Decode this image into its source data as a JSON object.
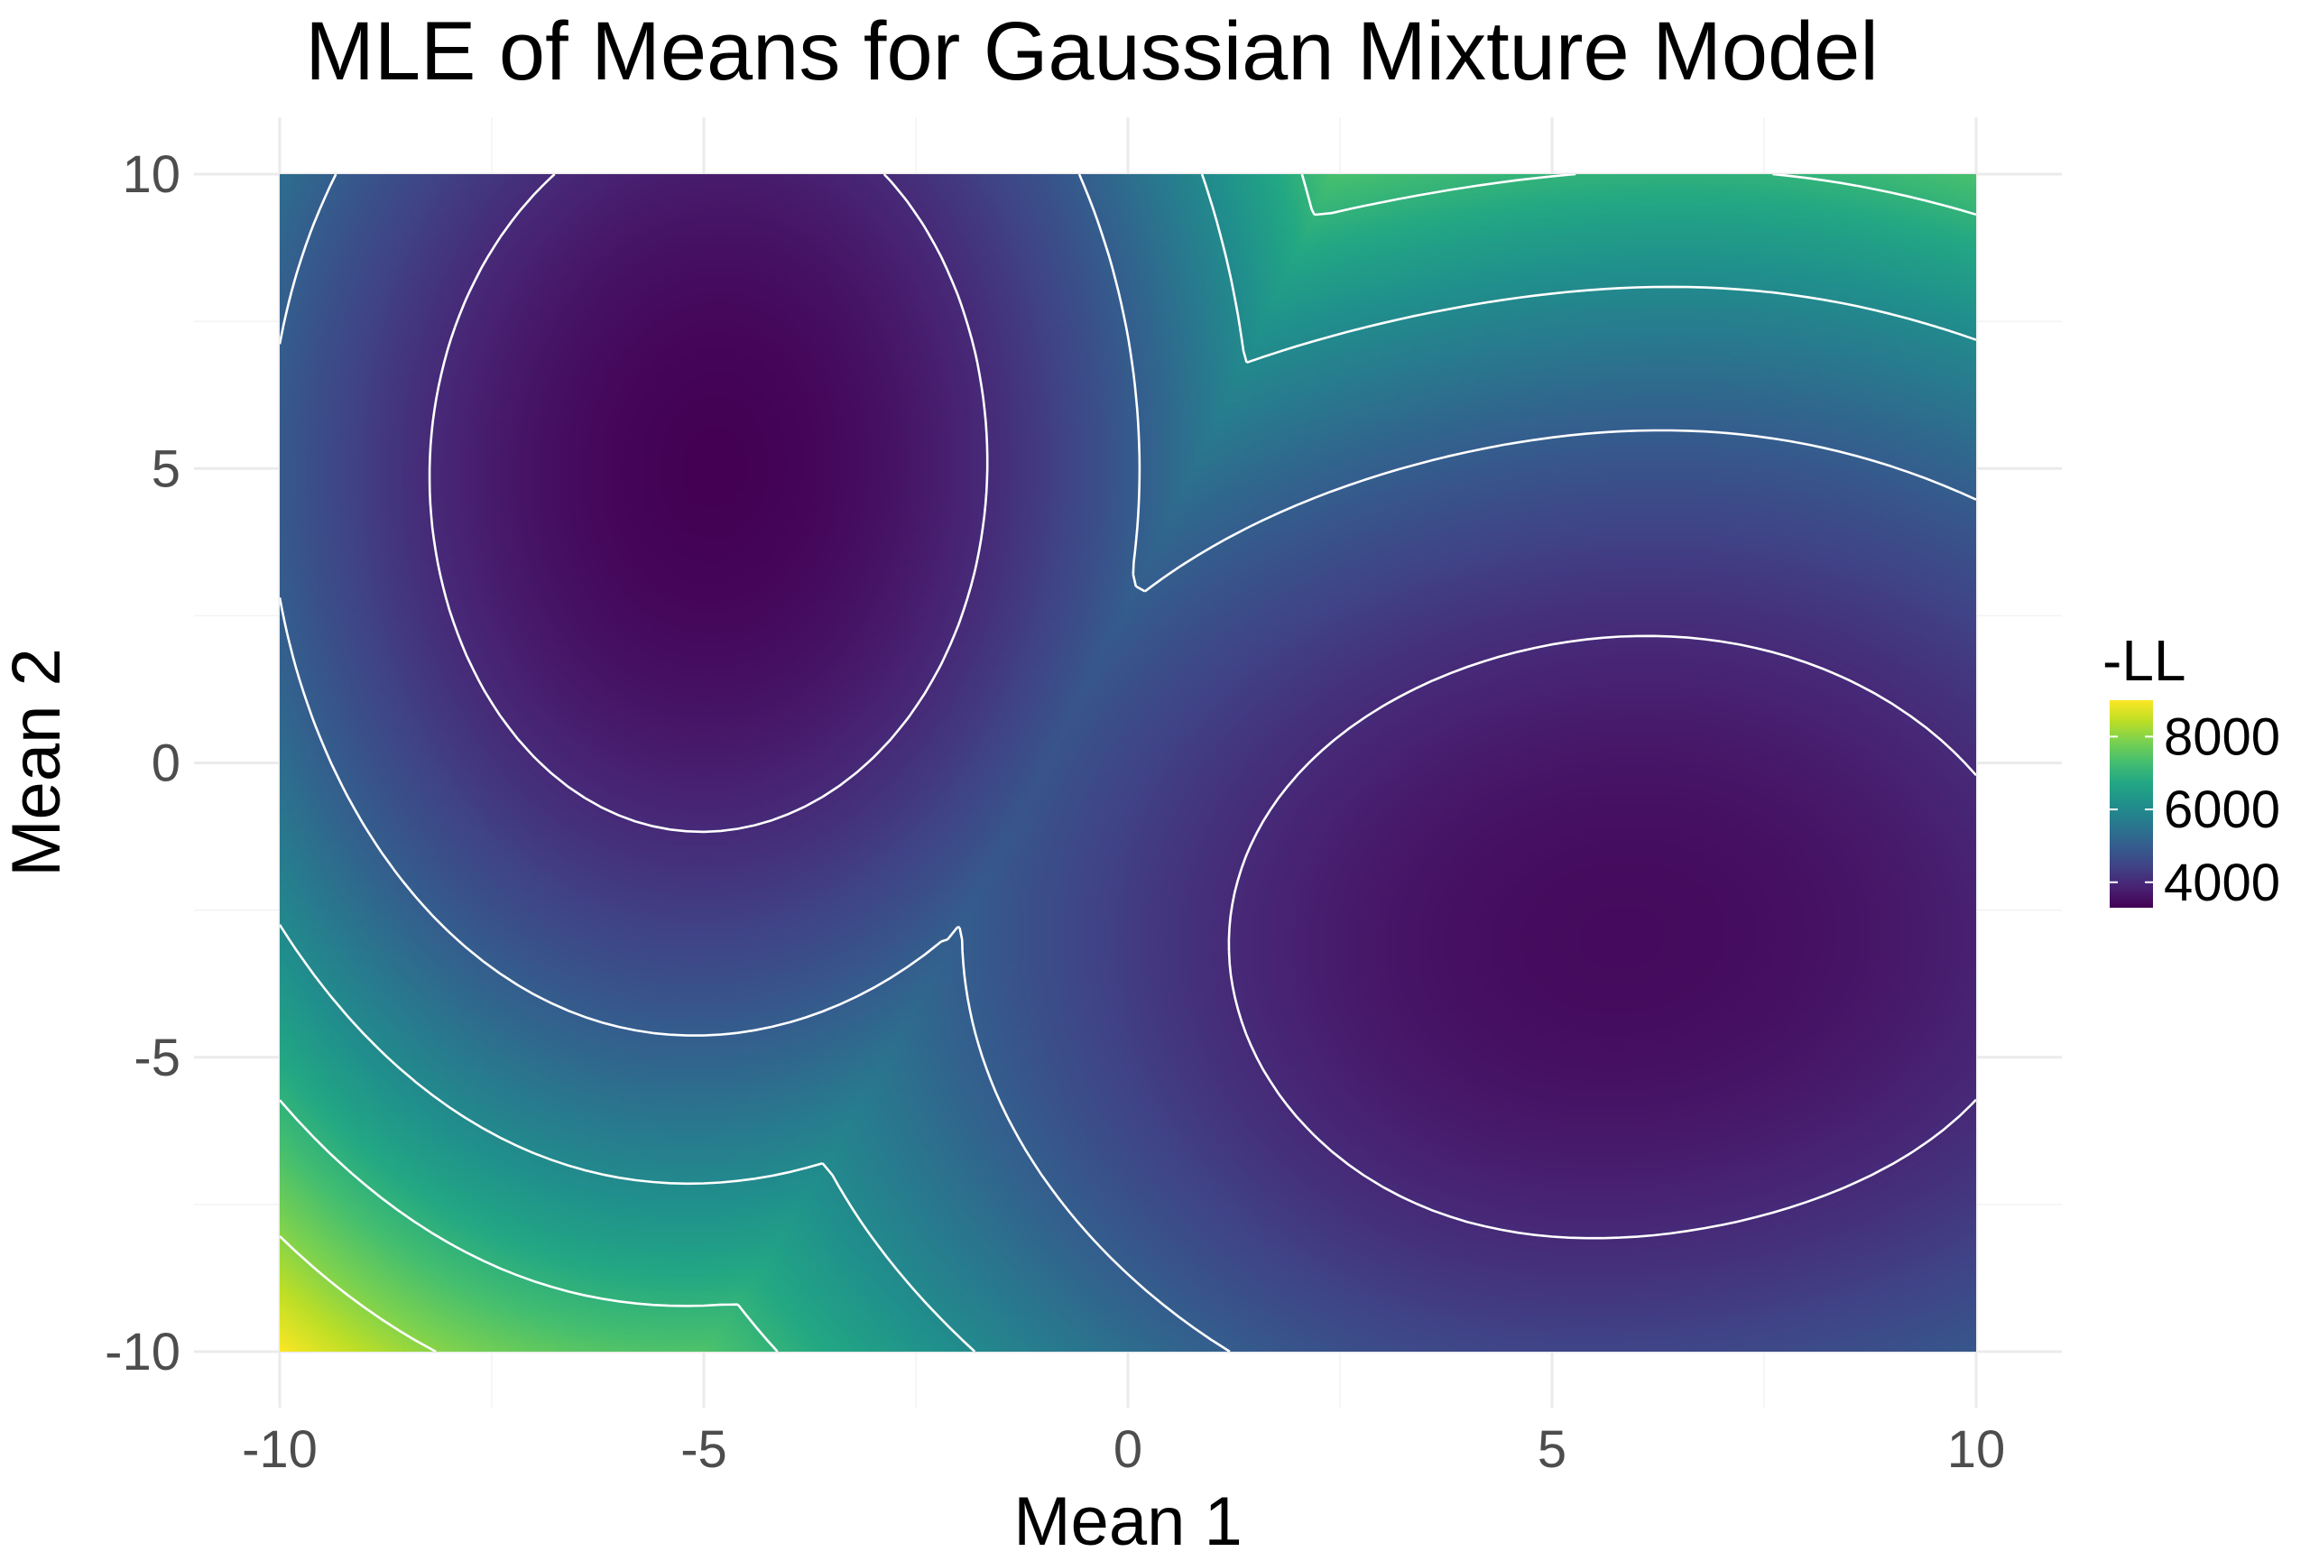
{
  "chart_data": {
    "type": "heatmap",
    "title": "MLE of Means for Gaussian Mixture Model",
    "xlabel": "Mean 1",
    "ylabel": "Mean 2",
    "xlim": [
      -10,
      10
    ],
    "ylim": [
      -10,
      10
    ],
    "x_ticks": [
      "-10",
      "-5",
      "0",
      "5",
      "10"
    ],
    "y_ticks": [
      "-10",
      "-5",
      "0",
      "5",
      "10"
    ],
    "x_tick_values": [
      -10,
      -5,
      0,
      5,
      10
    ],
    "y_tick_values": [
      -10,
      -5,
      0,
      5,
      10
    ],
    "grid": true,
    "colormap": "viridis",
    "fill_variable": "-LL",
    "value_range": [
      3300,
      9000
    ],
    "legend": {
      "title": "-LL",
      "ticks": [
        "8000",
        "6000",
        "4000"
      ],
      "tick_values": [
        8000,
        6000,
        4000
      ],
      "placement": "right"
    },
    "minima": [
      {
        "mean1": -5,
        "mean2": 5,
        "value": 3300
      },
      {
        "mean1": 6,
        "mean2": -3,
        "value": 3800
      }
    ],
    "contour_levels": [
      4000,
      5000,
      6000,
      7000,
      8000
    ],
    "contour_color": "#ffffff",
    "colors": [
      "#440154",
      "#3b528b",
      "#21918c",
      "#5ec962",
      "#fde725"
    ]
  }
}
